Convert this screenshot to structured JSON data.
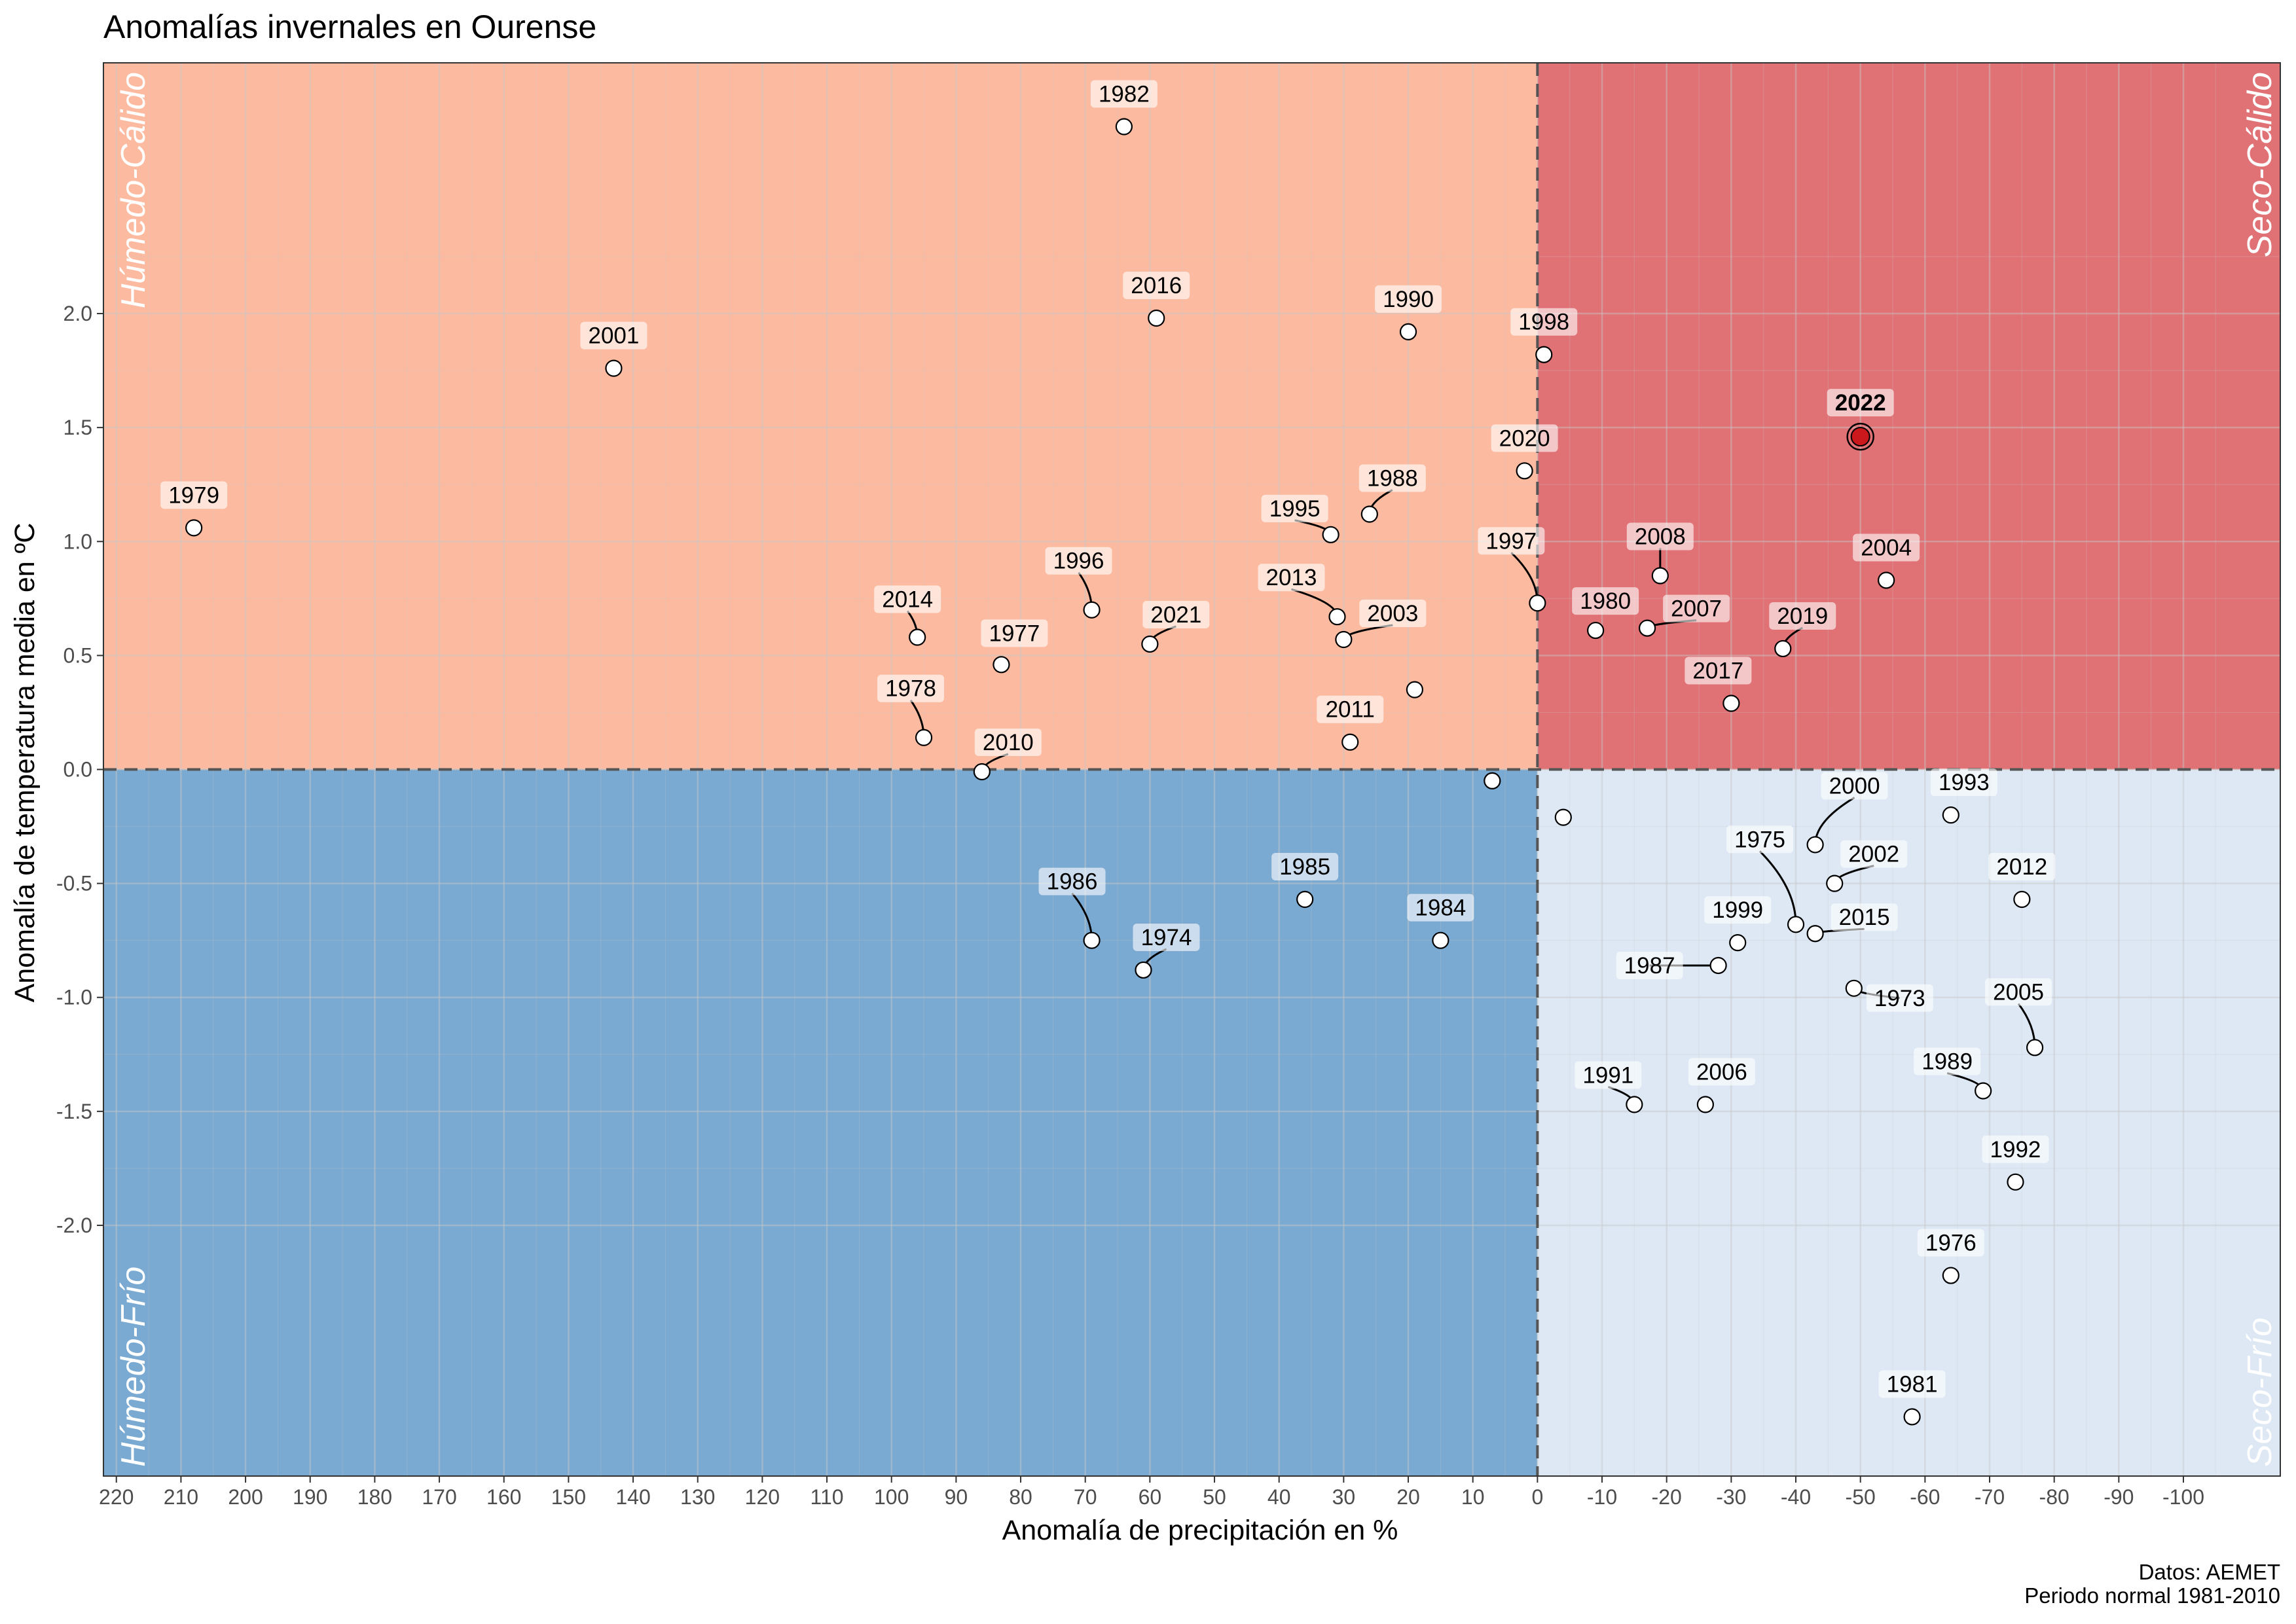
{
  "chart_data": {
    "type": "scatter",
    "title": "Anomalías invernales en Ourense",
    "xlabel": "Anomalía de precipitación en %",
    "ylabel": "Anomalía de temperatura media en ºC",
    "caption_lines": [
      "Datos: AEMET",
      "Periodo normal 1981-2010"
    ],
    "x_reversed": true,
    "xlim": [
      222,
      -115
    ],
    "ylim": [
      -3.1,
      3.1
    ],
    "x_ticks": [
      220,
      210,
      200,
      190,
      180,
      170,
      160,
      150,
      140,
      130,
      120,
      110,
      100,
      90,
      80,
      70,
      60,
      50,
      40,
      30,
      20,
      10,
      0,
      -10,
      -20,
      -30,
      -40,
      -50,
      -60,
      -70,
      -80,
      -90,
      -100
    ],
    "x_tick_labels": [
      "220",
      "210",
      "200",
      "190",
      "180",
      "170",
      "160",
      "150",
      "140",
      "130",
      "120",
      "110",
      "100",
      "90",
      "80",
      "70",
      "60",
      "50",
      "40",
      "30",
      "20",
      "10",
      "0",
      "-10",
      "-20",
      "-30",
      "-40",
      "-50",
      "-60",
      "-70",
      "-80",
      "-90",
      "-100"
    ],
    "y_ticks": [
      2.0,
      1.5,
      1.0,
      0.5,
      0.0,
      -0.5,
      -1.0,
      -1.5,
      -2.0
    ],
    "y_tick_labels": [
      "2.0",
      "1.5",
      "1.0",
      "0.5",
      "0.0",
      "-0.5",
      "-1.0",
      "-1.5",
      "-2.0"
    ],
    "quadrants": [
      {
        "name": "Húmedo-Cálido",
        "x_range": [
          222,
          0
        ],
        "y_range": [
          0,
          3.1
        ],
        "color": "#fcbba1",
        "label_corner": "top-left"
      },
      {
        "name": "Seco-Cálido",
        "x_range": [
          0,
          -115
        ],
        "y_range": [
          0,
          3.1
        ],
        "color": "#e07276",
        "label_corner": "top-right"
      },
      {
        "name": "Húmedo-Frío",
        "x_range": [
          222,
          0
        ],
        "y_range": [
          -3.1,
          0
        ],
        "color": "#7aa9d2",
        "label_corner": "bottom-left"
      },
      {
        "name": "Seco-Frío",
        "x_range": [
          0,
          -115
        ],
        "y_range": [
          -3.1,
          0
        ],
        "color": "#dde8f4",
        "label_corner": "bottom-right"
      }
    ],
    "reference_lines": {
      "x": 0,
      "y": 0,
      "style": "dashed"
    },
    "highlight": {
      "year": "2022",
      "color": "#cb181d"
    },
    "points": [
      {
        "year": "1982",
        "x": 64,
        "y": 2.82
      },
      {
        "year": "2016",
        "x": 59,
        "y": 1.98
      },
      {
        "year": "1990",
        "x": 20,
        "y": 1.92
      },
      {
        "year": "2001",
        "x": 143,
        "y": 1.76
      },
      {
        "year": "1998",
        "x": -1,
        "y": 1.82
      },
      {
        "year": "2022",
        "x": -50,
        "y": 1.46
      },
      {
        "year": "1979",
        "x": 208,
        "y": 1.06
      },
      {
        "year": "2020",
        "x": 2,
        "y": 1.31
      },
      {
        "year": "1988",
        "x": 26,
        "y": 1.12
      },
      {
        "year": "1995",
        "x": 32,
        "y": 1.03
      },
      {
        "year": "2008",
        "x": -19,
        "y": 0.85
      },
      {
        "year": "2004",
        "x": -54,
        "y": 0.83
      },
      {
        "year": "1996",
        "x": 69,
        "y": 0.7
      },
      {
        "year": "1997",
        "x": 0,
        "y": 0.73
      },
      {
        "year": "2013",
        "x": 31,
        "y": 0.67
      },
      {
        "year": "2003",
        "x": 30,
        "y": 0.57
      },
      {
        "year": "1980",
        "x": -9,
        "y": 0.61
      },
      {
        "year": "2007",
        "x": -17,
        "y": 0.62
      },
      {
        "year": "2014",
        "x": 96,
        "y": 0.58
      },
      {
        "year": "2021",
        "x": 60,
        "y": 0.55
      },
      {
        "year": "2019",
        "x": -38,
        "y": 0.53
      },
      {
        "year": "1977",
        "x": 83,
        "y": 0.46
      },
      {
        "year": "2017",
        "x": -30,
        "y": 0.29
      },
      {
        "year": "1978",
        "x": 95,
        "y": 0.14
      },
      {
        "year": "2011",
        "x": 29,
        "y": 0.12
      },
      {
        "year": "2010",
        "x": 86,
        "y": -0.01
      },
      {
        "year": "",
        "x": 19,
        "y": 0.35
      },
      {
        "year": "",
        "x": 7,
        "y": -0.05
      },
      {
        "year": "",
        "x": -4,
        "y": -0.21
      },
      {
        "year": "2000",
        "x": -43,
        "y": -0.33
      },
      {
        "year": "1993",
        "x": -64,
        "y": -0.2
      },
      {
        "year": "2002",
        "x": -46,
        "y": -0.5
      },
      {
        "year": "2012",
        "x": -75,
        "y": -0.57
      },
      {
        "year": "1975",
        "x": -40,
        "y": -0.68
      },
      {
        "year": "2015",
        "x": -43,
        "y": -0.72
      },
      {
        "year": "1999",
        "x": -31,
        "y": -0.76
      },
      {
        "year": "1987",
        "x": -28,
        "y": -0.86
      },
      {
        "year": "1973",
        "x": -49,
        "y": -0.96
      },
      {
        "year": "2005",
        "x": -77,
        "y": -1.22
      },
      {
        "year": "1989",
        "x": -69,
        "y": -1.41
      },
      {
        "year": "1991",
        "x": -15,
        "y": -1.47
      },
      {
        "year": "2006",
        "x": -26,
        "y": -1.47
      },
      {
        "year": "1992",
        "x": -74,
        "y": -1.81
      },
      {
        "year": "1976",
        "x": -64,
        "y": -2.22
      },
      {
        "year": "1981",
        "x": -58,
        "y": -2.84
      },
      {
        "year": "1985",
        "x": 36,
        "y": -0.57
      },
      {
        "year": "1986",
        "x": 69,
        "y": -0.75
      },
      {
        "year": "1974",
        "x": 61,
        "y": -0.88
      },
      {
        "year": "1984",
        "x": 15,
        "y": -0.75
      }
    ]
  }
}
